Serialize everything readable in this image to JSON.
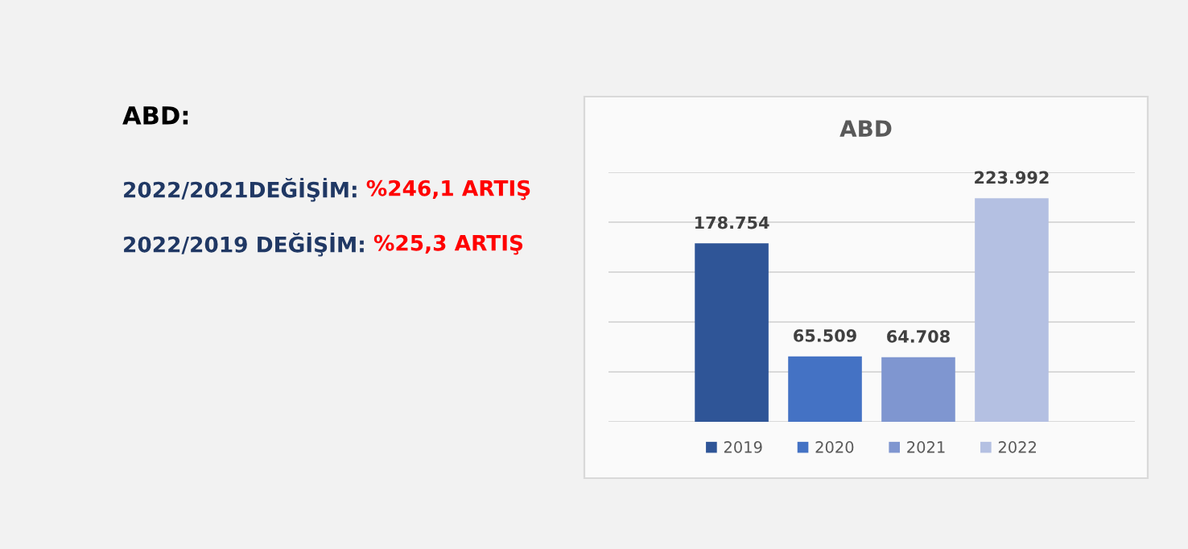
{
  "chart_data": {
    "type": "bar",
    "title": "ABD",
    "categories": [
      null
    ],
    "series": [
      {
        "name": "2019",
        "color": "#2f5597",
        "values": [
          178754
        ],
        "value_labels": [
          "178.754"
        ]
      },
      {
        "name": "2020",
        "color": "#4472c4",
        "values": [
          65509
        ],
        "value_labels": [
          "65.509"
        ]
      },
      {
        "name": "2021",
        "color": "#7f96d0",
        "values": [
          64708
        ],
        "value_labels": [
          "64.708"
        ]
      },
      {
        "name": "2022",
        "color": "#b4c0e2",
        "values": [
          223992
        ],
        "value_labels": [
          "223.992"
        ]
      }
    ],
    "ylim": [
      0,
      250000
    ],
    "yticks": [
      {
        "value": 0,
        "label": null
      },
      {
        "value": 50000,
        "label": null
      },
      {
        "value": 100000,
        "label": null
      },
      {
        "value": 150000,
        "label": null
      },
      {
        "value": 200000,
        "label": null
      },
      {
        "value": 250000,
        "label": null
      }
    ],
    "grid": "y",
    "legend": "bottom",
    "annotations": [
      "ABD:",
      "2022/2021DEĞİŞİM:",
      "%246,1 ARTIŞ",
      "2022/2019 DEĞİŞİM:",
      "%25,3 ARTIŞ"
    ]
  }
}
